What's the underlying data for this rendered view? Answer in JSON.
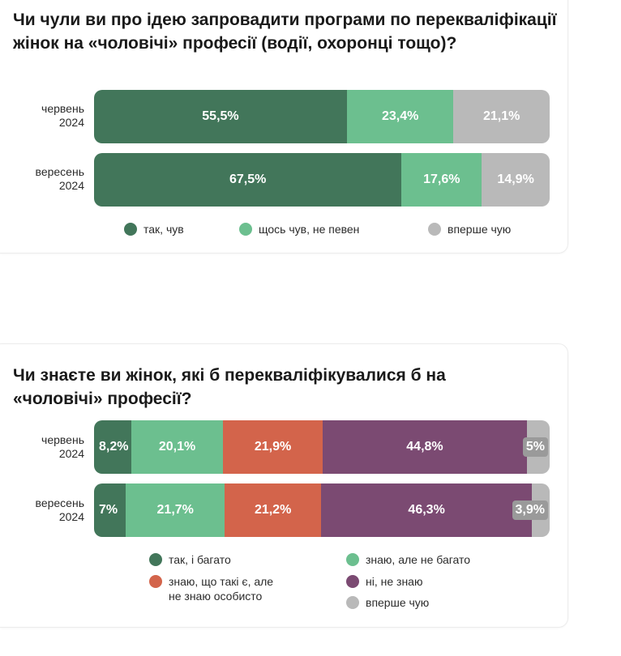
{
  "colors": {
    "dark_green": "#42765a",
    "light_green": "#6cbf8f",
    "gray": "#b9b9b9",
    "red": "#d3644b",
    "purple": "#7b4a72"
  },
  "chart_data": [
    {
      "type": "bar",
      "orientation": "horizontal-stacked-100",
      "title": "Чи чули ви про ідею запровадити програми по перекваліфікації жінок на «чоловічі» професії (водії, охоронці тощо)?",
      "categories": [
        "червень 2024",
        "вересень 2024"
      ],
      "series": [
        {
          "name": "так, чув",
          "values": [
            55.5,
            67.5
          ],
          "labels": [
            "55,5%",
            "67,5%"
          ],
          "color": "#42765a"
        },
        {
          "name": "щось чув, не певен",
          "values": [
            23.4,
            17.6
          ],
          "labels": [
            "23,4%",
            "17,6%"
          ],
          "color": "#6cbf8f"
        },
        {
          "name": "вперше чую",
          "values": [
            21.1,
            14.9
          ],
          "labels": [
            "21,1%",
            "14,9%"
          ],
          "color": "#b9b9b9"
        }
      ],
      "legend": [
        "так, чув",
        "щось чув, не певен",
        "вперше чую"
      ]
    },
    {
      "type": "bar",
      "orientation": "horizontal-stacked-100",
      "title": "Чи знаєте ви жінок, які б перекваліфікувалися б на «чоловічі» професії?",
      "categories": [
        "червень 2024",
        "вересень 2024"
      ],
      "series": [
        {
          "name": "так, і багато",
          "values": [
            8.2,
            7
          ],
          "labels": [
            "8,2%",
            "7%"
          ],
          "color": "#42765a"
        },
        {
          "name": "знаю, але не багато",
          "values": [
            20.1,
            21.7
          ],
          "labels": [
            "20,1%",
            "21,7%"
          ],
          "color": "#6cbf8f"
        },
        {
          "name": "знаю, що такі є, але не знаю особисто",
          "values": [
            21.9,
            21.2
          ],
          "labels": [
            "21,9%",
            "21,2%"
          ],
          "color": "#d3644b"
        },
        {
          "name": "ні, не знаю",
          "values": [
            44.8,
            46.3
          ],
          "labels": [
            "44,8%",
            "46,3%"
          ],
          "color": "#7b4a72"
        },
        {
          "name": "вперше чую",
          "values": [
            5,
            3.9
          ],
          "labels": [
            "5%",
            "3,9%"
          ],
          "color": "#b9b9b9"
        }
      ],
      "legend": [
        "так, і багато",
        "знаю, але не багато",
        "знаю, що такі є, але не знаю особисто",
        "ні, не знаю",
        "вперше чую"
      ]
    }
  ],
  "row_labels": {
    "r1": [
      "червень",
      "2024"
    ],
    "r2": [
      "вересень",
      "2024"
    ]
  },
  "legend_text": {
    "c2_item3_line1": "знаю, що такі є, але",
    "c2_item3_line2": "не знаю особисто"
  }
}
